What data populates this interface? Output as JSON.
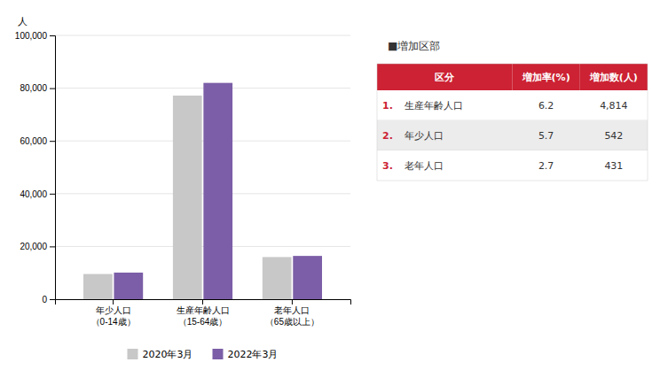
{
  "chart_data": [
    {
      "type": "bar",
      "ylabel": "人",
      "categories": [
        "年少人口\n（0-14歳）",
        "生産年齢人口\n（15-64歳）",
        "老年人口\n（65歳以上）"
      ],
      "series": [
        {
          "name": "2020年3月",
          "color": "#c8c8c8",
          "values": [
            9542,
            77186,
            15969
          ]
        },
        {
          "name": "2022年3月",
          "color": "#7b5ea7",
          "values": [
            10084,
            82000,
            16400
          ]
        }
      ],
      "ylim": [
        0,
        100000
      ],
      "yticks": [
        0,
        {
          "value": 20000,
          "label": "20,000"
        },
        {
          "value": 40000,
          "label": "40,000"
        },
        {
          "value": 60000,
          "label": "60,000"
        },
        {
          "value": 80000,
          "label": "80,000"
        },
        {
          "value": 100000,
          "label": "100,000"
        }
      ],
      "grid": true,
      "legend": "bottom"
    },
    {
      "type": "table",
      "title": "■増加区部",
      "color": "#cc2233",
      "columns": [
        "区分",
        "増加率(%)",
        "増加数(人)"
      ],
      "rows": [
        [
          "1.",
          "生産年齢人口",
          6.2,
          {
            "value": 4814,
            "label": "4,814"
          }
        ],
        [
          "2.",
          "年少人口",
          5.7,
          542
        ],
        [
          "3.",
          "老年人口",
          2.7,
          431
        ]
      ]
    }
  ]
}
